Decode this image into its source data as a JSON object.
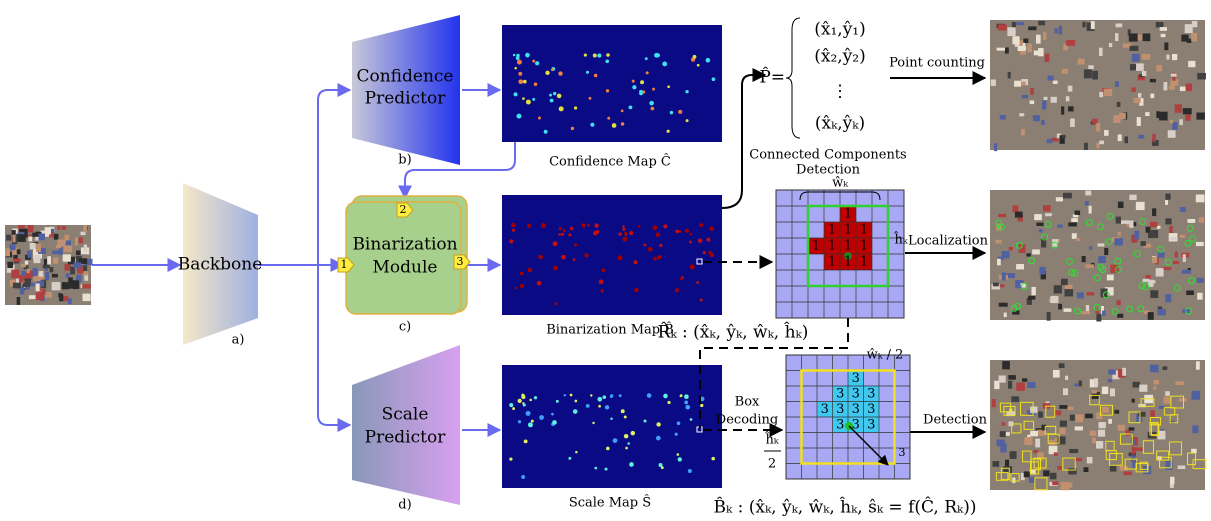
{
  "backbone": {
    "label": "Backbone",
    "tag": "a)"
  },
  "confidence_predictor": {
    "label_lines": [
      "Confidence",
      "Predictor"
    ],
    "tag": "b)"
  },
  "binarization_module": {
    "label_lines": [
      "Binarization",
      "Module"
    ],
    "tag": "c)",
    "ports": [
      "1",
      "2",
      "3"
    ]
  },
  "scale_predictor": {
    "label_lines": [
      "Scale",
      "Predictor"
    ],
    "tag": "d)"
  },
  "maps": [
    {
      "label": "Confidence Map  Ĉ"
    },
    {
      "label": "Binarization Map  B̂"
    },
    {
      "label": "Scale Map  Ŝ"
    }
  ],
  "point_set": {
    "lhs": "P̂=",
    "items": [
      "(x̂₁,ŷ₁)",
      "(x̂₂,ŷ₂)",
      "⋮",
      "(x̂ₖ,ŷₖ)"
    ]
  },
  "edges": {
    "point_counting": "Point counting",
    "localization": "Localization",
    "detection": "Detection",
    "box_decoding": [
      "Box",
      "Decoding"
    ],
    "connected_components": [
      "Connected Components",
      "Detection"
    ]
  },
  "localization_grid": {
    "width_label": "ŵₖ",
    "height_label": "ĥₖ",
    "cell_labels": [
      "1",
      "1",
      "1",
      "1",
      "1",
      "1",
      "1",
      "1",
      "1",
      "1",
      "1"
    ]
  },
  "region_formula": "R̂ₖ : (x̂ₖ, ŷₖ, ŵₖ, ĥₖ)",
  "decoding_grid": {
    "half_width": "ŵₖ / 2",
    "half_height": [
      "ĥₖ",
      "2"
    ],
    "cell_labels": [
      "3",
      "3",
      "3",
      "3",
      "3",
      "3",
      "3",
      "3",
      "3",
      "3",
      "3"
    ],
    "arrow_label": "3"
  },
  "box_formula": "B̂ₖ : (x̂ₖ, ŷₖ, ŵₖ, ĥₖ, ŝₖ = f(Ĉ, Rₖ))"
}
